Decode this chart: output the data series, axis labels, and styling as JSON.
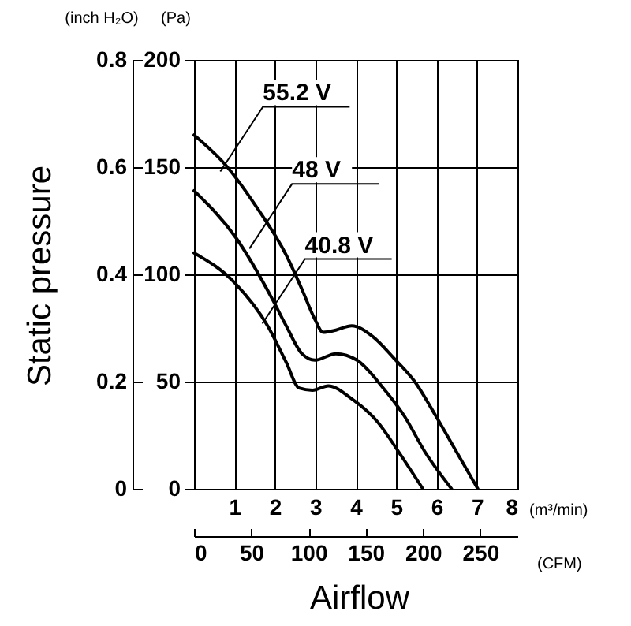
{
  "chart_data": {
    "type": "line",
    "xlabel": "(m³/min)",
    "ylabel": "(Pa)",
    "y2label": "(inch H₂O)",
    "x2label": "(CFM)",
    "xlim": [
      0,
      8
    ],
    "xticks": [
      1,
      2,
      3,
      4,
      5,
      6,
      7,
      8
    ],
    "ylim": [
      0,
      200
    ],
    "yticks": [
      0,
      50,
      100,
      150,
      200
    ],
    "y2lim": [
      0,
      0.8
    ],
    "y2ticks": [
      0,
      0.2,
      0.4,
      0.6,
      0.8
    ],
    "x2lim": [
      0,
      282.5
    ],
    "x2ticks": [
      0,
      50,
      100,
      150,
      200,
      250
    ],
    "grid": true,
    "legend": false,
    "marker": "none",
    "line_style": "solid",
    "series": [
      {
        "color": "#000000",
        "x": [
          0,
          0.78,
          1.56,
          2.28,
          2.67,
          2.99,
          3.19,
          3.51,
          3.9,
          4.42,
          4.94,
          5.46,
          5.98,
          6.5,
          7.02
        ],
        "values": [
          165,
          151,
          131,
          109,
          93,
          79,
          73,
          74,
          76,
          71,
          61,
          50,
          34,
          17,
          0
        ]
      },
      {
        "color": "#000000",
        "x": [
          0,
          1.04,
          1.95,
          2.28,
          2.67,
          2.99,
          3.51,
          4.03,
          4.68,
          5.2,
          5.72,
          6.37
        ],
        "values": [
          139,
          117,
          88,
          76,
          63,
          60,
          63,
          60,
          47,
          34,
          17,
          0
        ]
      },
      {
        "color": "#000000",
        "x": [
          0,
          1.01,
          1.82,
          2.28,
          2.6,
          2.93,
          3.32,
          3.9,
          4.55,
          5.07,
          5.66
        ],
        "values": [
          110,
          96,
          76,
          59,
          47,
          46,
          48,
          42,
          31,
          17,
          0
        ]
      }
    ],
    "annotations": [
      {
        "text": "55.2 V",
        "x": 0.65,
        "y": 148
      },
      {
        "text": "48 V",
        "x": 1.37,
        "y": 112
      },
      {
        "text": "40.8 V",
        "x": 1.69,
        "y": 77
      },
      "Static pressure",
      "Airflow"
    ]
  }
}
